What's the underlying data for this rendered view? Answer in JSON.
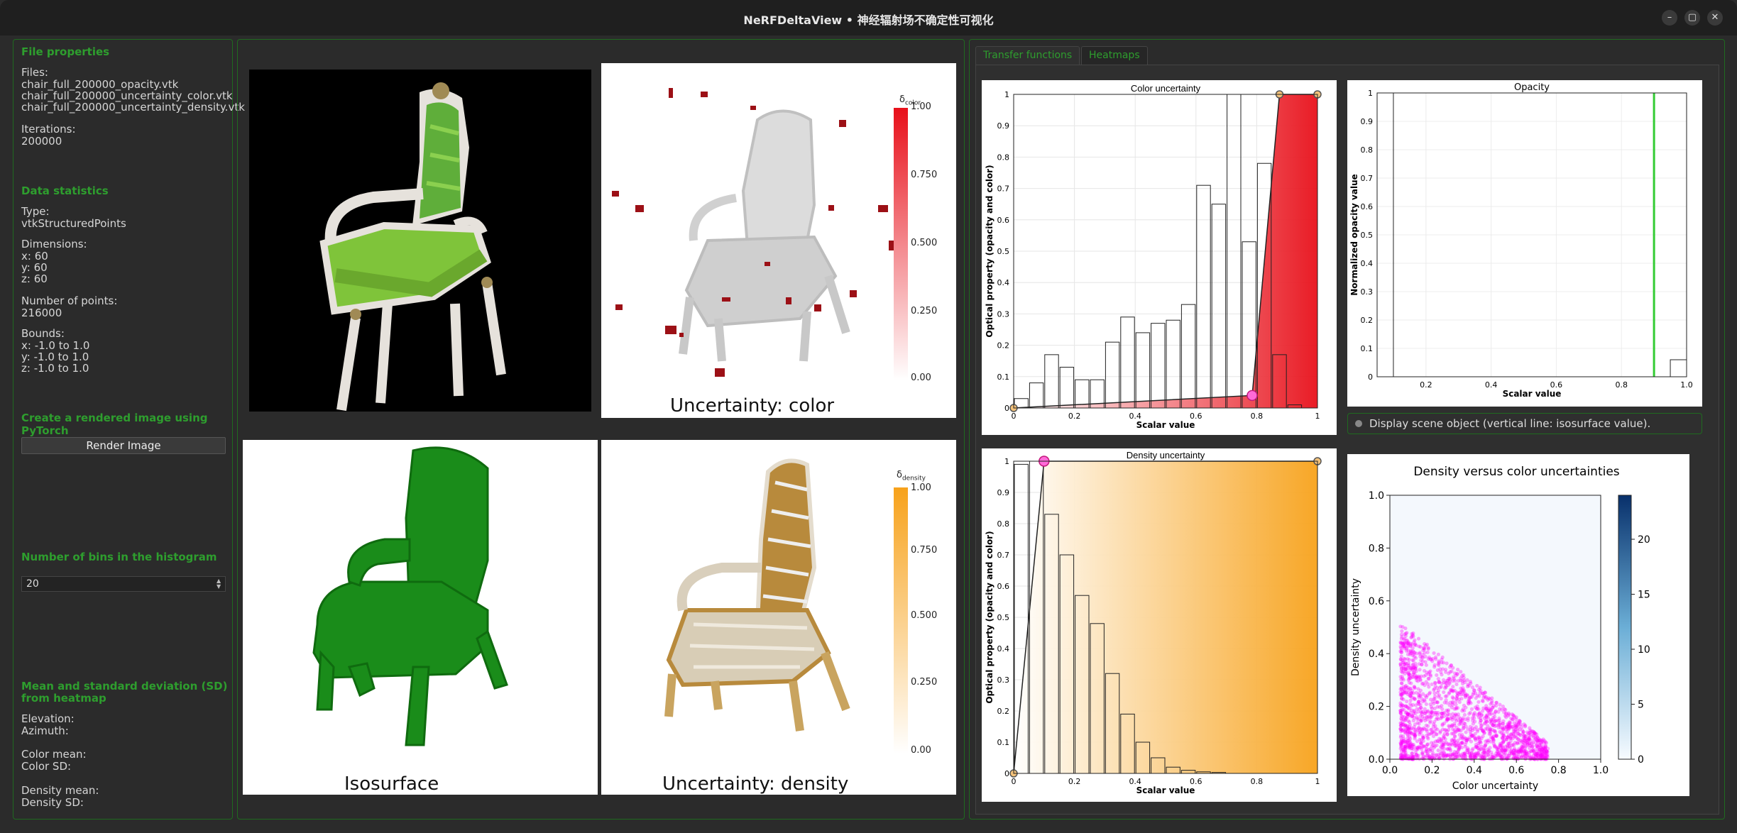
{
  "window": {
    "title": "NeRFDeltaView • 神经辐射场不确定性可视化"
  },
  "left": {
    "file_props_title": "File properties",
    "files_label": "Files:",
    "files": [
      "chair_full_200000_opacity.vtk",
      "chair_full_200000_uncertainty_color.vtk",
      "chair_full_200000_uncertainty_density.vtk"
    ],
    "iterations_label": "Iterations:",
    "iterations": "200000",
    "stats_title": "Data statistics",
    "type_label": "Type:",
    "type": "vtkStructuredPoints",
    "dims_label": "Dimensions:",
    "dims": [
      "x: 60",
      "y: 60",
      "z: 60"
    ],
    "npoints_label": "Number of points:",
    "npoints": "216000",
    "bounds_label": "Bounds:",
    "bounds": [
      "x: -1.0 to 1.0",
      "y: -1.0 to 1.0",
      "z: -1.0 to 1.0"
    ],
    "render_title": "Create a rendered image using PyTorch",
    "render_button": "Render Image",
    "bins_title": "Number of bins in the histogram",
    "bins_value": "20",
    "mean_title_1": "Mean and standard deviation (SD)",
    "mean_title_2": "from heatmap",
    "elevation": "Elevation:",
    "azimuth": "Azimuth:",
    "color_mean": "Color mean:",
    "color_sd": "Color SD:",
    "density_mean": "Density mean:",
    "density_sd": "Density SD:"
  },
  "views": {
    "color_caption": "Uncertainty: color",
    "iso_caption": "Isosurface",
    "density_caption": "Uncertainty: density",
    "color_bar": {
      "symbol": "δ",
      "sub": "color",
      "ticks": [
        "1.00",
        "0.750",
        "0.500",
        "0.250",
        "0.00"
      ]
    },
    "density_bar": {
      "symbol": "δ",
      "sub": "density",
      "ticks": [
        "1.00",
        "0.750",
        "0.500",
        "0.250",
        "0.00"
      ]
    },
    "colors": {
      "color_unc": "#e8101a",
      "density_unc": "#f7a21b",
      "iso": "#1a8c1a"
    }
  },
  "tabs": [
    {
      "label": "Transfer functions",
      "active": true
    },
    {
      "label": "Heatmaps",
      "active": false
    }
  ],
  "checkbox_label": "Display scene object (vertical line: isosurface value).",
  "chart_data": [
    {
      "type": "bar",
      "title": "Color uncertainty",
      "xlabel": "Scalar value",
      "ylabel": "Optical property (opacity and color)",
      "xlim": [
        0,
        1
      ],
      "ylim": [
        0,
        1
      ],
      "xticks": [
        "0",
        "0.2",
        "0.4",
        "0.6",
        "0.8",
        "1"
      ],
      "yticks": [
        "0",
        "0.1",
        "0.2",
        "0.3",
        "0.4",
        "0.5",
        "0.6",
        "0.7",
        "0.8",
        "0.9",
        "1"
      ],
      "bins": 20,
      "values": [
        0.03,
        0.08,
        0.17,
        0.13,
        0.09,
        0.09,
        0.21,
        0.29,
        0.24,
        0.27,
        0.28,
        0.33,
        0.71,
        0.65,
        1.0,
        0.53,
        0.78,
        0.17,
        0.01,
        0.0
      ],
      "transfer_points": [
        [
          0,
          0.0
        ],
        [
          0.785,
          0.04
        ],
        [
          0.875,
          1.0
        ],
        [
          1.0,
          1.0
        ]
      ],
      "color": "#e8101a"
    },
    {
      "type": "bar",
      "title": "Opacity",
      "xlabel": "Scalar value",
      "ylabel": "Normalized opacity value",
      "xlim": [
        0.05,
        1.0
      ],
      "ylim": [
        0,
        1
      ],
      "xticks": [
        "0.2",
        "0.4",
        "0.6",
        "0.8",
        "1.0"
      ],
      "yticks": [
        "0",
        "0.1",
        "0.2",
        "0.3",
        "0.4",
        "0.5",
        "0.6",
        "0.7",
        "0.8",
        "0.9",
        "1"
      ],
      "bins": [
        [
          0.05,
          0.1,
          1.0
        ],
        [
          0.95,
          1.0,
          0.06
        ]
      ],
      "isosurface_value": 0.9
    },
    {
      "type": "bar",
      "title": "Density uncertainty",
      "xlabel": "Scalar value",
      "ylabel": "Optical property (opacity and color)",
      "xlim": [
        0,
        1
      ],
      "ylim": [
        0,
        1
      ],
      "xticks": [
        "0",
        "0.2",
        "0.4",
        "0.6",
        "0.8",
        "1"
      ],
      "yticks": [
        "0",
        "0.1",
        "0.2",
        "0.3",
        "0.4",
        "0.5",
        "0.6",
        "0.7",
        "0.8",
        "0.9",
        "1"
      ],
      "bins": 20,
      "values": [
        0.99,
        1.0,
        0.83,
        0.7,
        0.57,
        0.48,
        0.32,
        0.19,
        0.1,
        0.05,
        0.02,
        0.01,
        0.005,
        0.003,
        0.0,
        0.0,
        0.0,
        0.0,
        0.0,
        0.0
      ],
      "transfer_points": [
        [
          0,
          0.0
        ],
        [
          0.1,
          1.0
        ],
        [
          1.0,
          1.0
        ]
      ],
      "color": "#f7a21b"
    },
    {
      "type": "scatter",
      "title": "Density versus color uncertainties",
      "xlabel": "Color uncertainty",
      "ylabel": "Density uncertainty",
      "xlim": [
        0,
        1
      ],
      "ylim": [
        0,
        1
      ],
      "xticks": [
        "0.0",
        "0.2",
        "0.4",
        "0.6",
        "0.8",
        "1.0"
      ],
      "yticks": [
        "0.0",
        "0.2",
        "0.4",
        "0.6",
        "0.8",
        "1.0"
      ],
      "colorbar_ticks": [
        "0",
        "5",
        "10",
        "15",
        "20"
      ],
      "color": "#ff00ff"
    }
  ]
}
